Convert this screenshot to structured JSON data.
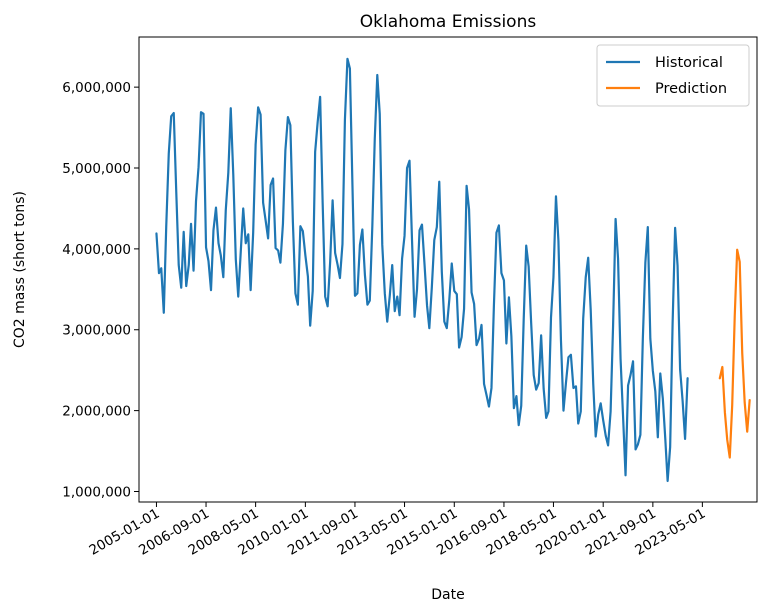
{
  "chart_data": {
    "type": "line",
    "title": "Oklahoma Emissions",
    "xlabel": "Date",
    "ylabel": "CO2 mass (short tons)",
    "x_ticks": [
      "2005-01-01",
      "2006-09-01",
      "2008-05-01",
      "2010-01-01",
      "2011-09-01",
      "2013-05-01",
      "2015-01-01",
      "2016-09-01",
      "2018-05-01",
      "2020-01-01",
      "2021-09-01",
      "2023-05-01"
    ],
    "y_ticks": [
      1000000,
      2000000,
      3000000,
      4000000,
      5000000,
      6000000
    ],
    "y_tick_labels": [
      "1,000,000",
      "2,000,000",
      "3,000,000",
      "4,000,000",
      "5,000,000",
      "6,000,000"
    ],
    "xlim": [
      "2004-06-01",
      "2025-03-01"
    ],
    "ylim": [
      870000,
      6620000
    ],
    "grid": false,
    "legend_position": "top-right",
    "series": [
      {
        "name": "Historical",
        "color": "#1f77b4",
        "start": "2005-01-01",
        "values": [
          4190000,
          3700000,
          3760000,
          3210000,
          4280000,
          5180000,
          5640000,
          5680000,
          4700000,
          3800000,
          3520000,
          4210000,
          3540000,
          3800000,
          4310000,
          3730000,
          4590000,
          5010000,
          5690000,
          5670000,
          4020000,
          3850000,
          3490000,
          4230000,
          4510000,
          4070000,
          3920000,
          3650000,
          4480000,
          4940000,
          5740000,
          4920000,
          3870000,
          3410000,
          3970000,
          4500000,
          4070000,
          4180000,
          3490000,
          4200000,
          5290000,
          5750000,
          5660000,
          4570000,
          4350000,
          4130000,
          4790000,
          4870000,
          4010000,
          3980000,
          3830000,
          4310000,
          5220000,
          5630000,
          5530000,
          4330000,
          3450000,
          3310000,
          4280000,
          4220000,
          3920000,
          3660000,
          3050000,
          3480000,
          5200000,
          5570000,
          5880000,
          4570000,
          3410000,
          3290000,
          3840000,
          4600000,
          3950000,
          3800000,
          3640000,
          4060000,
          5600000,
          6350000,
          6230000,
          4800000,
          3420000,
          3450000,
          4050000,
          4240000,
          3680000,
          3310000,
          3360000,
          4280000,
          5360000,
          6150000,
          5670000,
          4050000,
          3450000,
          3100000,
          3420000,
          3800000,
          3230000,
          3410000,
          3180000,
          3880000,
          4160000,
          5000000,
          5090000,
          4100000,
          3160000,
          3500000,
          4230000,
          4300000,
          3810000,
          3300000,
          3020000,
          3530000,
          4110000,
          4270000,
          4830000,
          3720000,
          3100000,
          3020000,
          3370000,
          3820000,
          3480000,
          3440000,
          2780000,
          2910000,
          3260000,
          4780000,
          4490000,
          3460000,
          3320000,
          2810000,
          2890000,
          3060000,
          2330000,
          2190000,
          2050000,
          2280000,
          3300000,
          4200000,
          4290000,
          3700000,
          3610000,
          2830000,
          3400000,
          2920000,
          2030000,
          2180000,
          1820000,
          2060000,
          3120000,
          4040000,
          3780000,
          3080000,
          2440000,
          2260000,
          2340000,
          2930000,
          2270000,
          1910000,
          1990000,
          3150000,
          3650000,
          4650000,
          4100000,
          2870000,
          2000000,
          2340000,
          2660000,
          2690000,
          2280000,
          2300000,
          1840000,
          1990000,
          3140000,
          3650000,
          3890000,
          3240000,
          2330000,
          1680000,
          1950000,
          2090000,
          1880000,
          1690000,
          1570000,
          1990000,
          3040000,
          4370000,
          3880000,
          2640000,
          1920000,
          1200000,
          2310000,
          2440000,
          2610000,
          1520000,
          1580000,
          1700000,
          2890000,
          3830000,
          4270000,
          2890000,
          2490000,
          2240000,
          1670000,
          2460000,
          2150000,
          1640000,
          1130000,
          1550000,
          3070000,
          4260000,
          3790000,
          2510000,
          2120000,
          1650000,
          2400000
        ]
      },
      {
        "name": "Prediction",
        "color": "#ff7f0e",
        "start": "2023-12-01",
        "values": [
          2400000,
          2540000,
          1980000,
          1640000,
          1420000,
          2070000,
          3170000,
          3990000,
          3840000,
          2710000,
          2100000,
          1740000,
          2130000
        ]
      }
    ]
  }
}
